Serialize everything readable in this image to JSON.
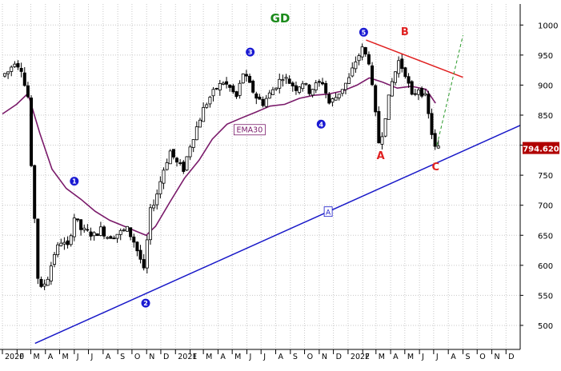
{
  "chart_data": {
    "type": "candlestick",
    "title": "GD",
    "yticks": [
      500,
      550,
      600,
      650,
      700,
      750,
      800,
      850,
      900,
      950,
      1000
    ],
    "ylim": [
      460,
      1035
    ],
    "last_price": "794.620",
    "x_start": "2020-01-01",
    "x_end": "2022-12-31",
    "xticks": [
      {
        "d": "2020-01-01",
        "l": "2020"
      },
      {
        "d": "2020-02-01",
        "l": "F"
      },
      {
        "d": "2020-03-01",
        "l": "M"
      },
      {
        "d": "2020-04-01",
        "l": "A"
      },
      {
        "d": "2020-05-01",
        "l": "M"
      },
      {
        "d": "2020-06-01",
        "l": "J"
      },
      {
        "d": "2020-07-01",
        "l": "J"
      },
      {
        "d": "2020-08-01",
        "l": "A"
      },
      {
        "d": "2020-09-01",
        "l": "S"
      },
      {
        "d": "2020-10-01",
        "l": "O"
      },
      {
        "d": "2020-11-01",
        "l": "N"
      },
      {
        "d": "2020-12-01",
        "l": "D"
      },
      {
        "d": "2021-01-01",
        "l": "2021"
      },
      {
        "d": "2021-02-01",
        "l": "F"
      },
      {
        "d": "2021-03-01",
        "l": "M"
      },
      {
        "d": "2021-04-01",
        "l": "A"
      },
      {
        "d": "2021-05-01",
        "l": "M"
      },
      {
        "d": "2021-06-01",
        "l": "J"
      },
      {
        "d": "2021-07-01",
        "l": "J"
      },
      {
        "d": "2021-08-01",
        "l": "A"
      },
      {
        "d": "2021-09-01",
        "l": "S"
      },
      {
        "d": "2021-10-01",
        "l": "O"
      },
      {
        "d": "2021-11-01",
        "l": "N"
      },
      {
        "d": "2021-12-01",
        "l": "D"
      },
      {
        "d": "2022-01-01",
        "l": "2022"
      },
      {
        "d": "2022-02-01",
        "l": "F"
      },
      {
        "d": "2022-03-01",
        "l": "M"
      },
      {
        "d": "2022-04-01",
        "l": "A"
      },
      {
        "d": "2022-05-01",
        "l": "M"
      },
      {
        "d": "2022-06-01",
        "l": "J"
      },
      {
        "d": "2022-07-01",
        "l": "J"
      },
      {
        "d": "2022-08-01",
        "l": "A"
      },
      {
        "d": "2022-09-01",
        "l": "S"
      },
      {
        "d": "2022-10-01",
        "l": "O"
      },
      {
        "d": "2022-11-01",
        "l": "N"
      },
      {
        "d": "2022-12-01",
        "l": "D"
      }
    ],
    "price_path": [
      [
        "2020-01-03",
        915
      ],
      [
        "2020-01-17",
        922
      ],
      [
        "2020-01-31",
        940
      ],
      [
        "2020-02-14",
        928
      ],
      [
        "2020-02-21",
        900
      ],
      [
        "2020-02-28",
        880
      ],
      [
        "2020-03-06",
        760
      ],
      [
        "2020-03-13",
        680
      ],
      [
        "2020-03-20",
        580
      ],
      [
        "2020-03-27",
        560
      ],
      [
        "2020-04-10",
        580
      ],
      [
        "2020-04-24",
        620
      ],
      [
        "2020-05-08",
        640
      ],
      [
        "2020-05-22",
        630
      ],
      [
        "2020-06-05",
        680
      ],
      [
        "2020-06-19",
        660
      ],
      [
        "2020-07-03",
        655
      ],
      [
        "2020-07-17",
        650
      ],
      [
        "2020-07-31",
        660
      ],
      [
        "2020-08-14",
        648
      ],
      [
        "2020-08-28",
        650
      ],
      [
        "2020-09-11",
        655
      ],
      [
        "2020-09-25",
        660
      ],
      [
        "2020-10-09",
        640
      ],
      [
        "2020-10-23",
        610
      ],
      [
        "2020-10-30",
        590
      ],
      [
        "2020-11-06",
        640
      ],
      [
        "2020-11-13",
        690
      ],
      [
        "2020-11-27",
        720
      ],
      [
        "2020-12-11",
        760
      ],
      [
        "2020-12-25",
        790
      ],
      [
        "2021-01-08",
        770
      ],
      [
        "2021-01-22",
        760
      ],
      [
        "2021-02-05",
        800
      ],
      [
        "2021-02-19",
        830
      ],
      [
        "2021-03-05",
        860
      ],
      [
        "2021-03-19",
        880
      ],
      [
        "2021-04-02",
        895
      ],
      [
        "2021-04-16",
        905
      ],
      [
        "2021-04-30",
        895
      ],
      [
        "2021-05-14",
        880
      ],
      [
        "2021-05-28",
        920
      ],
      [
        "2021-06-11",
        900
      ],
      [
        "2021-06-25",
        880
      ],
      [
        "2021-07-09",
        870
      ],
      [
        "2021-07-23",
        885
      ],
      [
        "2021-08-06",
        900
      ],
      [
        "2021-08-20",
        915
      ],
      [
        "2021-09-03",
        905
      ],
      [
        "2021-09-17",
        895
      ],
      [
        "2021-10-01",
        905
      ],
      [
        "2021-10-15",
        890
      ],
      [
        "2021-10-29",
        900
      ],
      [
        "2021-11-12",
        905
      ],
      [
        "2021-11-26",
        870
      ],
      [
        "2021-12-10",
        880
      ],
      [
        "2021-12-24",
        895
      ],
      [
        "2022-01-07",
        910
      ],
      [
        "2022-01-21",
        940
      ],
      [
        "2022-02-04",
        960
      ],
      [
        "2022-02-18",
        940
      ],
      [
        "2022-03-04",
        850
      ],
      [
        "2022-03-11",
        805
      ],
      [
        "2022-03-18",
        820
      ],
      [
        "2022-03-25",
        850
      ],
      [
        "2022-04-08",
        905
      ],
      [
        "2022-04-22",
        940
      ],
      [
        "2022-05-06",
        920
      ],
      [
        "2022-05-20",
        880
      ],
      [
        "2022-06-03",
        895
      ],
      [
        "2022-06-17",
        880
      ],
      [
        "2022-06-24",
        850
      ],
      [
        "2022-07-01",
        820
      ],
      [
        "2022-07-08",
        795
      ]
    ],
    "ema30": [
      [
        "2020-01-01",
        852
      ],
      [
        "2020-01-31",
        868
      ],
      [
        "2020-02-24",
        886
      ],
      [
        "2020-03-20",
        820
      ],
      [
        "2020-04-15",
        760
      ],
      [
        "2020-05-15",
        728
      ],
      [
        "2020-06-15",
        710
      ],
      [
        "2020-07-15",
        690
      ],
      [
        "2020-08-15",
        675
      ],
      [
        "2020-09-15",
        665
      ],
      [
        "2020-10-15",
        655
      ],
      [
        "2020-10-31",
        650
      ],
      [
        "2020-11-20",
        665
      ],
      [
        "2020-12-20",
        705
      ],
      [
        "2021-01-20",
        745
      ],
      [
        "2021-02-20",
        775
      ],
      [
        "2021-03-20",
        810
      ],
      [
        "2021-04-20",
        835
      ],
      [
        "2021-05-20",
        845
      ],
      [
        "2021-06-20",
        855
      ],
      [
        "2021-07-20",
        865
      ],
      [
        "2021-08-20",
        868
      ],
      [
        "2021-09-20",
        878
      ],
      [
        "2021-10-20",
        883
      ],
      [
        "2021-11-20",
        885
      ],
      [
        "2021-12-20",
        890
      ],
      [
        "2022-01-20",
        900
      ],
      [
        "2022-02-15",
        912
      ],
      [
        "2022-03-15",
        905
      ],
      [
        "2022-04-15",
        895
      ],
      [
        "2022-05-15",
        898
      ],
      [
        "2022-06-15",
        893
      ],
      [
        "2022-07-05",
        870
      ]
    ],
    "ema_label": "EMA30",
    "lines": [
      {
        "name": "support",
        "color": "#1818c8",
        "from": [
          "2020-03-10",
          470
        ],
        "to": [
          "2022-12-31",
          833
        ]
      },
      {
        "name": "resistance",
        "color": "#e02020",
        "from": [
          "2022-02-08",
          975
        ],
        "to": [
          "2022-09-01",
          913
        ]
      },
      {
        "name": "projection",
        "color": "#2a9a2a",
        "dashed": true,
        "from": [
          "2022-07-08",
          800
        ],
        "to": [
          "2022-09-01",
          983
        ]
      }
    ],
    "trendline_label": "A",
    "wave_numbers": [
      {
        "label": "1",
        "d": "2020-06-01",
        "v": 740
      },
      {
        "label": "2",
        "d": "2020-10-30",
        "v": 537
      },
      {
        "label": "3",
        "d": "2021-06-08",
        "v": 955
      },
      {
        "label": "4",
        "d": "2021-11-05",
        "v": 835
      },
      {
        "label": "5",
        "d": "2022-02-03",
        "v": 988
      }
    ],
    "wave_letters": [
      {
        "label": "A",
        "d": "2022-03-11",
        "v": 777
      },
      {
        "label": "B",
        "d": "2022-05-01",
        "v": 983
      },
      {
        "label": "C",
        "d": "2022-07-05",
        "v": 758
      }
    ],
    "colors": {
      "background": "#ffffff",
      "grid": "#c8c8c8",
      "candles": "#000000",
      "ema": "#7a1a6a",
      "title": "#1a8a1a",
      "wave_number_fill": "#1a1ad2",
      "wave_letter": "#e02020",
      "last_price_bg": "#b00000"
    }
  }
}
